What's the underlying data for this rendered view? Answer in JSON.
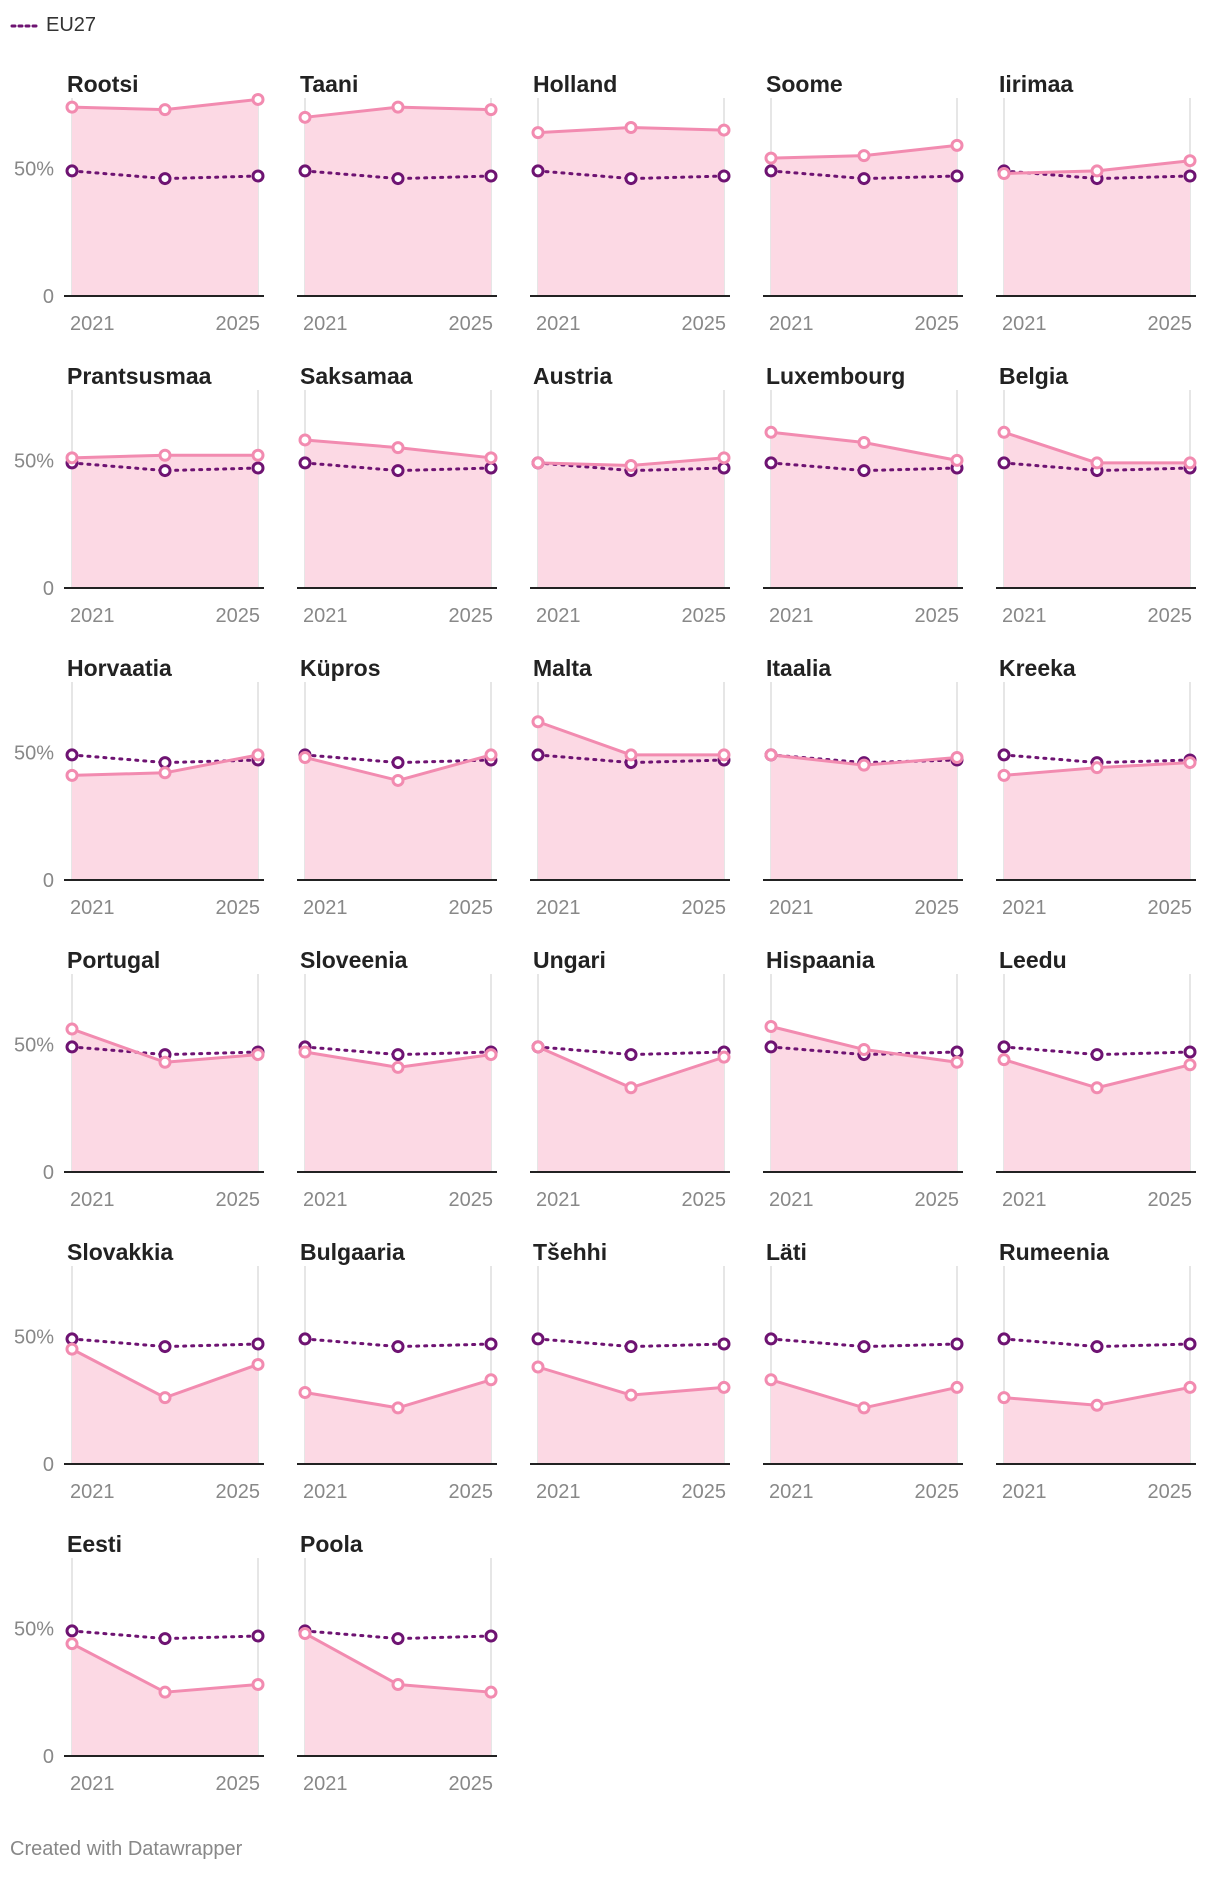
{
  "legend": {
    "label": "EU27"
  },
  "credit": "Created with Datawrapper",
  "colors": {
    "country_line": "#f28bb0",
    "country_fill": "#fcd9e4",
    "eu_line": "#6e1372",
    "axis": "#222222",
    "gridline": "#dddddd",
    "tick_text": "#888888",
    "title_text": "#222222"
  },
  "chart_data": {
    "type": "line",
    "x": [
      2021,
      2023,
      2025
    ],
    "x_tick_labels": [
      "2021",
      "2025"
    ],
    "y_tick_labels": [
      "0",
      "50%"
    ],
    "y_ticks": [
      0,
      50
    ],
    "ylim": [
      0,
      76
    ],
    "eu27": {
      "name": "EU27",
      "values": [
        49,
        46,
        47
      ]
    },
    "panels": [
      {
        "title": "Rootsi",
        "values": [
          74,
          73,
          77
        ]
      },
      {
        "title": "Taani",
        "values": [
          70,
          74,
          73
        ]
      },
      {
        "title": "Holland",
        "values": [
          64,
          66,
          65
        ]
      },
      {
        "title": "Soome",
        "values": [
          54,
          55,
          59
        ]
      },
      {
        "title": "Iirimaa",
        "values": [
          48,
          49,
          53
        ]
      },
      {
        "title": "Prantsusmaa",
        "values": [
          51,
          52,
          52
        ]
      },
      {
        "title": "Saksamaa",
        "values": [
          58,
          55,
          51
        ]
      },
      {
        "title": "Austria",
        "values": [
          49,
          48,
          51
        ]
      },
      {
        "title": "Luxembourg",
        "values": [
          61,
          57,
          50
        ]
      },
      {
        "title": "Belgia",
        "values": [
          61,
          49,
          49
        ]
      },
      {
        "title": "Horvaatia",
        "values": [
          41,
          42,
          49
        ]
      },
      {
        "title": "Küpros",
        "values": [
          48,
          39,
          49
        ]
      },
      {
        "title": "Malta",
        "values": [
          62,
          49,
          49
        ]
      },
      {
        "title": "Itaalia",
        "values": [
          49,
          45,
          48
        ]
      },
      {
        "title": "Kreeka",
        "values": [
          41,
          44,
          46
        ]
      },
      {
        "title": "Portugal",
        "values": [
          56,
          43,
          46
        ]
      },
      {
        "title": "Sloveenia",
        "values": [
          47,
          41,
          46
        ]
      },
      {
        "title": "Ungari",
        "values": [
          49,
          33,
          45
        ]
      },
      {
        "title": "Hispaania",
        "values": [
          57,
          48,
          43
        ]
      },
      {
        "title": "Leedu",
        "values": [
          44,
          33,
          42
        ]
      },
      {
        "title": "Slovakkia",
        "values": [
          45,
          26,
          39
        ]
      },
      {
        "title": "Bulgaaria",
        "values": [
          28,
          22,
          33
        ]
      },
      {
        "title": "Tšehhi",
        "values": [
          38,
          27,
          30
        ]
      },
      {
        "title": "Läti",
        "values": [
          33,
          22,
          30
        ]
      },
      {
        "title": "Rumeenia",
        "values": [
          26,
          23,
          30
        ]
      },
      {
        "title": "Eesti",
        "values": [
          44,
          25,
          28
        ]
      },
      {
        "title": "Poola",
        "values": [
          48,
          28,
          25
        ]
      }
    ]
  }
}
